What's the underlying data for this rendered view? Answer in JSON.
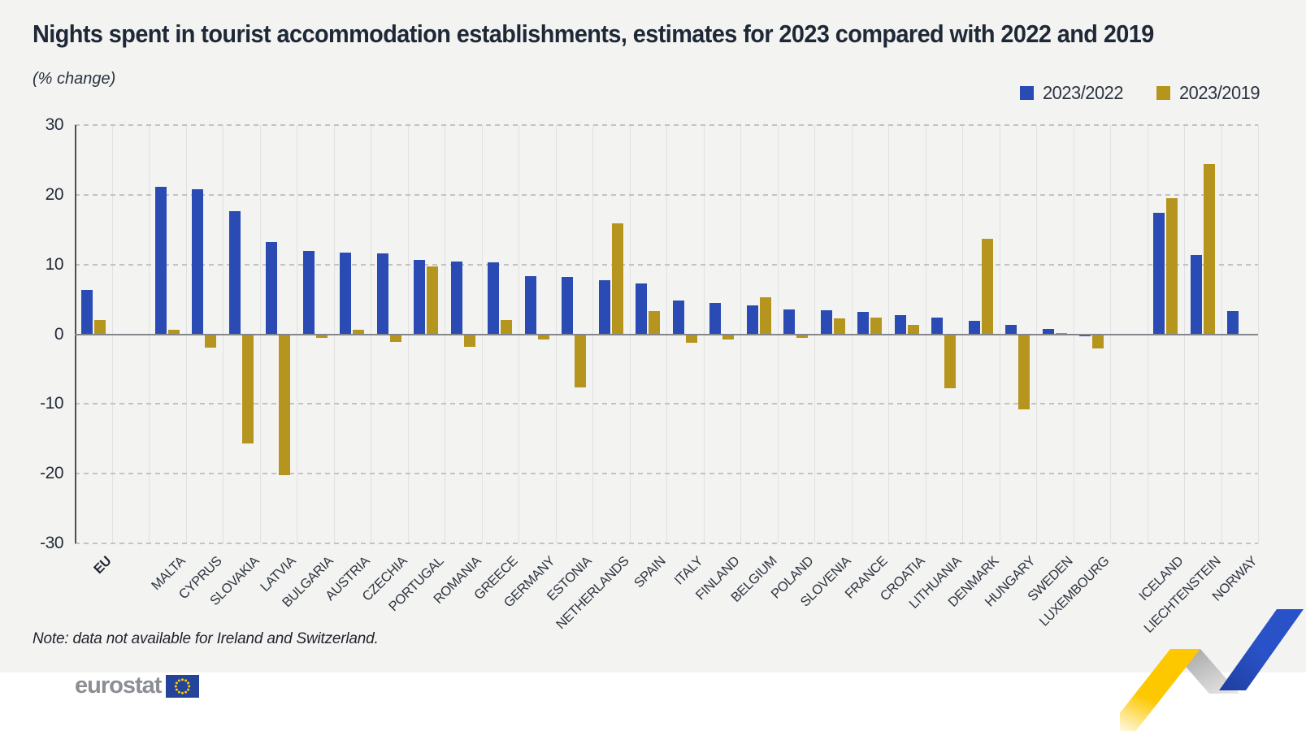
{
  "header": {
    "title": "Nights spent in tourist accommodation establishments, estimates for 2023 compared with 2022 and 2019",
    "subtitle": "(% change)"
  },
  "legend": {
    "items": [
      {
        "label": "2023/2022",
        "color": "#2a4ab4"
      },
      {
        "label": "2023/2019",
        "color": "#b6951e"
      }
    ]
  },
  "note": "Note: data not available for Ireland and Switzerland.",
  "footer": {
    "logo_text": "eurostat",
    "eu_flag_icon": "eu-flag-icon",
    "flag_blue": "#24439a",
    "star_yellow": "#ffcc00"
  },
  "decoration": {
    "name": "zigzag-ribbon-graphic",
    "yellow": "#fdc800",
    "gray": "#ababab",
    "blue": "#2a52c8"
  },
  "chart_data": {
    "type": "bar",
    "title": "Nights spent in tourist accommodation establishments, estimates for 2023 compared with 2022 and 2019",
    "subtitle": "(% change)",
    "unit": "% change",
    "legend_position": "top-right",
    "grid": "dashed horizontal gridlines, light vertical separators",
    "ylim": [
      -30,
      30
    ],
    "yticks": [
      30,
      20,
      10,
      0,
      -10,
      -20,
      -30
    ],
    "categories": [
      "EU",
      "MALTA",
      "CYPRUS",
      "SLOVAKIA",
      "LATVIA",
      "BULGARIA",
      "AUSTRIA",
      "CZECHIA",
      "PORTUGAL",
      "ROMANIA",
      "GREECE",
      "GERMANY",
      "ESTONIA",
      "NETHERLANDS",
      "SPAIN",
      "ITALY",
      "FINLAND",
      "BELGIUM",
      "POLAND",
      "SLOVENIA",
      "FRANCE",
      "CROATIA",
      "LITHUANIA",
      "DENMARK",
      "HUNGARY",
      "SWEDEN",
      "LUXEMBOURG",
      "ICELAND",
      "LIECHTENSTEIN",
      "NORWAY"
    ],
    "bold_categories": [
      "EU"
    ],
    "gap_after": [
      "EU",
      "LUXEMBOURG"
    ],
    "series": [
      {
        "name": "2023/2022",
        "color": "#2a4ab4",
        "values": [
          6.4,
          21.2,
          20.8,
          17.7,
          13.2,
          12.0,
          11.7,
          11.6,
          10.7,
          10.4,
          10.3,
          8.4,
          8.2,
          7.8,
          7.3,
          4.9,
          4.5,
          4.2,
          3.6,
          3.4,
          3.2,
          2.7,
          2.4,
          1.9,
          1.3,
          0.8,
          -0.3,
          17.4,
          11.4,
          3.3
        ]
      },
      {
        "name": "2023/2019",
        "color": "#b6951e",
        "values": [
          2.0,
          0.7,
          -1.9,
          -15.7,
          -20.2,
          -0.5,
          0.6,
          -1.1,
          9.8,
          -1.8,
          2.1,
          -0.8,
          -7.6,
          15.9,
          3.3,
          -1.2,
          -0.8,
          5.3,
          -0.5,
          2.3,
          2.4,
          1.4,
          -7.8,
          13.7,
          -10.8,
          0.2,
          -2.1,
          19.5,
          24.5,
          null
        ]
      }
    ]
  }
}
